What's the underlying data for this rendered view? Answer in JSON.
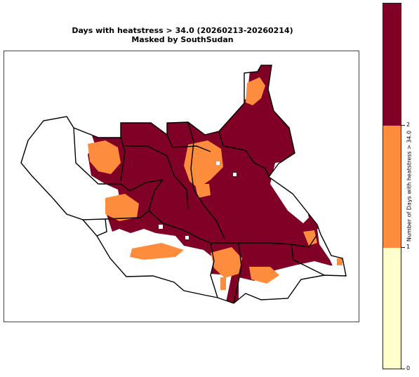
{
  "title": {
    "line1": "Days with heatstress > 34.0 (20260213-20260214)",
    "line2": "Masked by SouthSudan"
  },
  "colorbar": {
    "label": "Number of Days with heatstress > 34.0",
    "ticks": [
      "0",
      "1",
      "2"
    ],
    "colors": {
      "zero_to_one": "#ffffcc",
      "one_to_two": "#fd8d3c",
      "two_plus": "#800026"
    }
  },
  "map": {
    "colors": {
      "low": "#ffffcc",
      "medium": "#fd8d3c",
      "high": "#800026",
      "border": "#000000"
    }
  }
}
